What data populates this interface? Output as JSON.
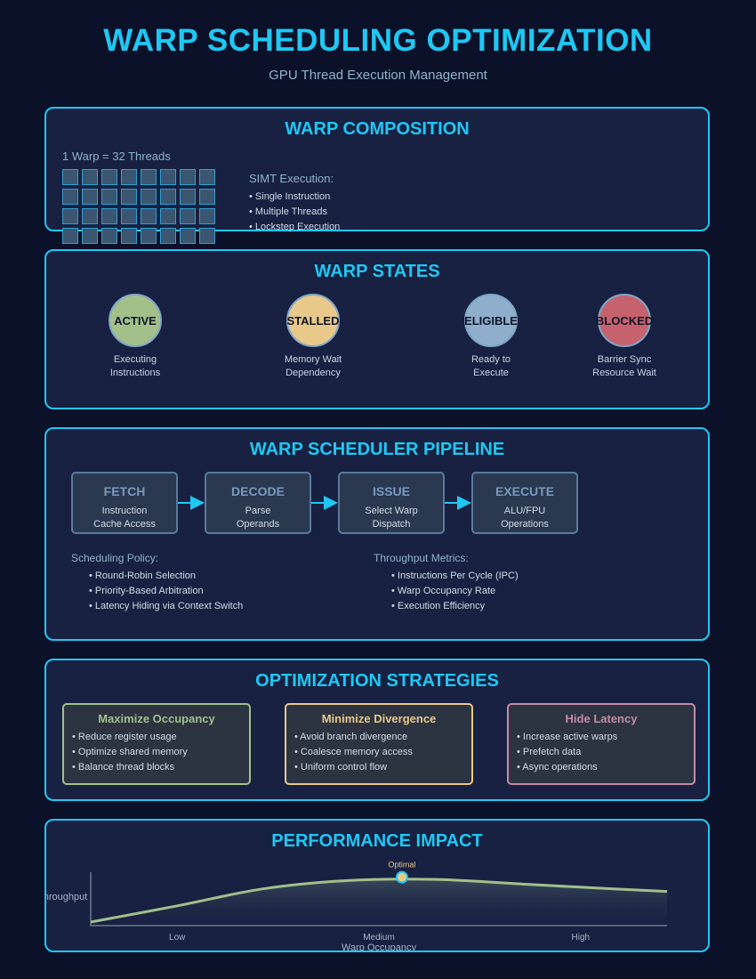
{
  "header": {
    "title": "WARP SCHEDULING OPTIMIZATION",
    "subtitle": "GPU Thread Execution Management"
  },
  "composition": {
    "title": "WARP COMPOSITION",
    "label": "1 Warp = 32 Threads",
    "thread_count": 32,
    "simt_heading": "SIMT Execution:",
    "simt_items": [
      "• Single Instruction",
      "• Multiple Threads",
      "• Lockstep Execution"
    ]
  },
  "states": {
    "title": "WARP STATES",
    "items": [
      {
        "name": "ACTIVE",
        "desc": "Executing\nInstructions",
        "color": "#a3c08a"
      },
      {
        "name": "STALLED",
        "desc": "Memory Wait\nDependency",
        "color": "#e9c98a"
      },
      {
        "name": "ELIGIBLE",
        "desc": "Ready to\nExecute",
        "color": "#8eaecc"
      },
      {
        "name": "BLOCKED",
        "desc": "Barrier Sync\nResource Wait",
        "color": "#c5626d"
      }
    ]
  },
  "pipeline": {
    "title": "WARP SCHEDULER PIPELINE",
    "stages": [
      {
        "name": "FETCH",
        "desc": "Instruction\nCache Access"
      },
      {
        "name": "DECODE",
        "desc": "Parse\nOperands"
      },
      {
        "name": "ISSUE",
        "desc": "Select Warp\nDispatch"
      },
      {
        "name": "EXECUTE",
        "desc": "ALU/FPU\nOperations"
      }
    ],
    "policy_heading": "Scheduling Policy:",
    "policy_items": [
      "• Round-Robin Selection",
      "• Priority-Based Arbitration",
      "• Latency Hiding via Context Switch"
    ],
    "metrics_heading": "Throughput Metrics:",
    "metrics_items": [
      "• Instructions Per Cycle (IPC)",
      "• Warp Occupancy Rate",
      "• Execution Efficiency"
    ]
  },
  "strategies": {
    "title": "OPTIMIZATION STRATEGIES",
    "items": [
      {
        "title": "Maximize Occupancy",
        "color": "#a3c08a",
        "items": [
          "• Reduce register usage",
          "• Optimize shared memory",
          "• Balance thread blocks"
        ]
      },
      {
        "title": "Minimize Divergence",
        "color": "#e9c98a",
        "items": [
          "• Avoid branch divergence",
          "• Coalesce memory access",
          "• Uniform control flow"
        ]
      },
      {
        "title": "Hide Latency",
        "color": "#c88aa8",
        "items": [
          "• Increase active warps",
          "• Prefetch data",
          "• Async operations"
        ]
      }
    ]
  },
  "performance": {
    "title": "PERFORMANCE IMPACT",
    "ylabel": "Throughput",
    "xlabel": "Warp Occupancy",
    "optimal_label": "Optimal",
    "line_color": "#a3c08a",
    "marker_color": "#e9c98a"
  },
  "chart_data": {
    "type": "area",
    "title": "PERFORMANCE IMPACT",
    "xlabel": "Warp Occupancy",
    "ylabel": "Throughput",
    "categories": [
      "Low",
      "Medium",
      "High"
    ],
    "x": [
      0,
      0.15,
      0.3,
      0.45,
      0.6,
      0.75,
      0.9,
      1.0
    ],
    "values": [
      0.0,
      0.35,
      0.72,
      0.9,
      0.92,
      0.82,
      0.72,
      0.66
    ],
    "annotations": [
      {
        "text": "Optimal",
        "x": 0.54,
        "y": 0.93
      }
    ]
  }
}
